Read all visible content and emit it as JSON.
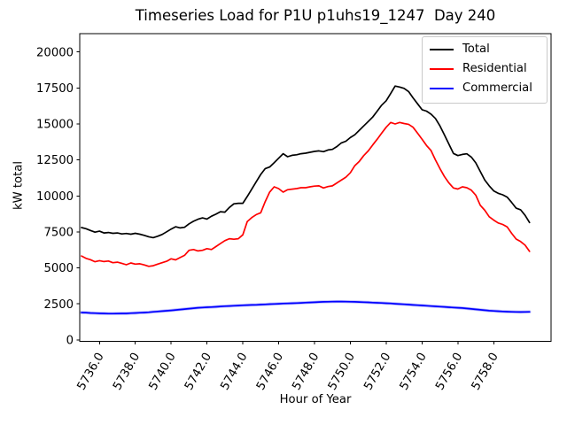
{
  "figure": {
    "title": "Timeseries Load for P1U p1uhs19_1247  Day 240",
    "xlabel": "Hour of Year",
    "ylabel": "kW total",
    "legend": [
      {
        "label": "Total",
        "color": "#000000"
      },
      {
        "label": "Residential",
        "color": "#ff0000"
      },
      {
        "label": "Commercial",
        "color": "#0000ff"
      }
    ]
  },
  "chart_data": {
    "type": "line",
    "title": "Timeseries Load for P1U p1uhs19_1247  Day 240",
    "xlabel": "Hour of Year",
    "ylabel": "kW total",
    "grid": false,
    "legend_position": "upper right",
    "xlim": [
      5734.9,
      5761.2
    ],
    "ylim": [
      -100,
      21270
    ],
    "xticks": {
      "values": [
        5736,
        5738,
        5740,
        5742,
        5744,
        5746,
        5748,
        5750,
        5752,
        5754,
        5756,
        5758
      ],
      "labels": [
        "5736.0",
        "5738.0",
        "5740.0",
        "5742.0",
        "5744.0",
        "5746.0",
        "5748.0",
        "5750.0",
        "5752.0",
        "5754.0",
        "5756.0",
        "5758.0"
      ]
    },
    "yticks": {
      "values": [
        0,
        2500,
        5000,
        7500,
        10000,
        12500,
        15000,
        17500,
        20000
      ],
      "labels": [
        "0",
        "2500",
        "5000",
        "7500",
        "10000",
        "12500",
        "15000",
        "17500",
        "20000"
      ]
    },
    "x": [
      5735.0,
      5735.25,
      5735.5,
      5735.75,
      5736.0,
      5736.25,
      5736.5,
      5736.75,
      5737.0,
      5737.25,
      5737.5,
      5737.75,
      5738.0,
      5738.25,
      5738.5,
      5738.75,
      5739.0,
      5739.25,
      5739.5,
      5739.75,
      5740.0,
      5740.25,
      5740.5,
      5740.75,
      5741.0,
      5741.25,
      5741.5,
      5741.75,
      5742.0,
      5742.25,
      5742.5,
      5742.75,
      5743.0,
      5743.25,
      5743.5,
      5743.75,
      5744.0,
      5744.25,
      5744.5,
      5744.75,
      5745.0,
      5745.25,
      5745.5,
      5745.75,
      5746.0,
      5746.25,
      5746.5,
      5746.75,
      5747.0,
      5747.25,
      5747.5,
      5747.75,
      5748.0,
      5748.25,
      5748.5,
      5748.75,
      5749.0,
      5749.25,
      5749.5,
      5749.75,
      5750.0,
      5750.25,
      5750.5,
      5750.75,
      5751.0,
      5751.25,
      5751.5,
      5751.75,
      5752.0,
      5752.25,
      5752.5,
      5752.75,
      5753.0,
      5753.25,
      5753.5,
      5753.75,
      5754.0,
      5754.25,
      5754.5,
      5754.75,
      5755.0,
      5755.25,
      5755.5,
      5755.75,
      5756.0,
      5756.25,
      5756.5,
      5756.75,
      5757.0,
      5757.25,
      5757.5,
      5757.75,
      5758.0,
      5758.25,
      5758.5,
      5758.75,
      5759.0,
      5759.25,
      5759.5,
      5759.75,
      5760.0
    ],
    "series": [
      {
        "name": "Total",
        "color": "#000000",
        "values": [
          7800,
          7720,
          7600,
          7480,
          7550,
          7430,
          7460,
          7400,
          7430,
          7360,
          7390,
          7340,
          7400,
          7340,
          7260,
          7160,
          7100,
          7200,
          7320,
          7510,
          7700,
          7860,
          7780,
          7820,
          8060,
          8240,
          8380,
          8470,
          8390,
          8590,
          8730,
          8900,
          8870,
          9200,
          9450,
          9490,
          9490,
          9960,
          10470,
          10980,
          11490,
          11900,
          12010,
          12310,
          12620,
          12930,
          12720,
          12820,
          12860,
          12930,
          12970,
          13030,
          13090,
          13130,
          13070,
          13190,
          13230,
          13430,
          13680,
          13800,
          14050,
          14250,
          14560,
          14860,
          15170,
          15480,
          15890,
          16300,
          16610,
          17110,
          17630,
          17560,
          17470,
          17250,
          16810,
          16400,
          15990,
          15890,
          15680,
          15380,
          14860,
          14250,
          13600,
          12950,
          12800,
          12880,
          12925,
          12700,
          12300,
          11700,
          11100,
          10700,
          10350,
          10180,
          10080,
          9920,
          9550,
          9150,
          9040,
          8650,
          8150
        ]
      },
      {
        "name": "Residential",
        "color": "#ff0000",
        "values": [
          5830,
          5660,
          5570,
          5430,
          5500,
          5440,
          5480,
          5360,
          5400,
          5320,
          5220,
          5340,
          5260,
          5290,
          5210,
          5110,
          5150,
          5260,
          5360,
          5460,
          5630,
          5560,
          5720,
          5870,
          6220,
          6280,
          6180,
          6220,
          6340,
          6280,
          6480,
          6690,
          6890,
          7030,
          6990,
          7030,
          7300,
          8220,
          8500,
          8700,
          8830,
          9610,
          10270,
          10630,
          10510,
          10260,
          10430,
          10470,
          10510,
          10570,
          10570,
          10630,
          10680,
          10700,
          10550,
          10650,
          10700,
          10900,
          11100,
          11300,
          11600,
          12100,
          12400,
          12800,
          13130,
          13540,
          13940,
          14360,
          14770,
          15100,
          15000,
          15100,
          15030,
          14970,
          14770,
          14360,
          13940,
          13500,
          13150,
          12500,
          11900,
          11350,
          10900,
          10550,
          10480,
          10630,
          10570,
          10400,
          10050,
          9350,
          9000,
          8550,
          8320,
          8120,
          8020,
          7850,
          7400,
          7000,
          6830,
          6580,
          6150
        ]
      },
      {
        "name": "Commercial",
        "color": "#0000ff",
        "values": [
          1900,
          1890,
          1870,
          1855,
          1845,
          1835,
          1825,
          1825,
          1830,
          1835,
          1840,
          1855,
          1870,
          1885,
          1900,
          1920,
          1945,
          1970,
          1995,
          2020,
          2045,
          2075,
          2105,
          2140,
          2170,
          2200,
          2230,
          2250,
          2265,
          2280,
          2300,
          2320,
          2340,
          2355,
          2370,
          2385,
          2400,
          2415,
          2425,
          2435,
          2450,
          2465,
          2480,
          2495,
          2510,
          2525,
          2535,
          2545,
          2555,
          2570,
          2585,
          2600,
          2615,
          2630,
          2640,
          2650,
          2655,
          2660,
          2660,
          2655,
          2650,
          2640,
          2630,
          2620,
          2605,
          2590,
          2575,
          2560,
          2545,
          2530,
          2510,
          2490,
          2470,
          2450,
          2430,
          2410,
          2390,
          2370,
          2350,
          2330,
          2310,
          2290,
          2270,
          2250,
          2230,
          2210,
          2180,
          2150,
          2120,
          2090,
          2060,
          2030,
          2010,
          1990,
          1975,
          1960,
          1950,
          1940,
          1935,
          1940,
          1950
        ]
      }
    ]
  }
}
